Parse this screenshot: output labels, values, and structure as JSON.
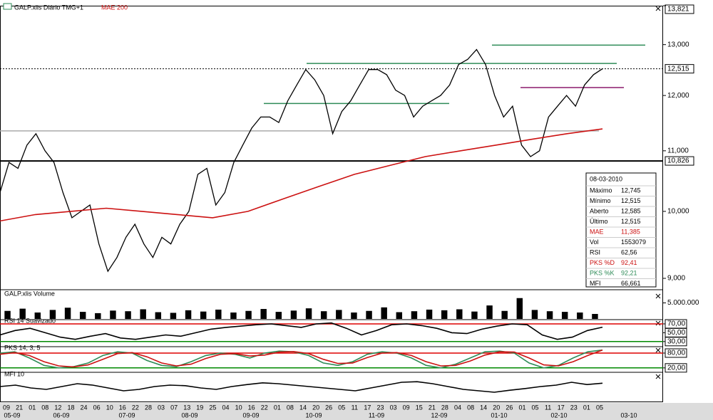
{
  "chart_data": [
    {
      "type": "line",
      "title": "GALP.xlis Diário TMG+1",
      "log_scale": true,
      "ylim": [
        8860,
        13821
      ],
      "yticks": [
        {
          "value": 9000,
          "label": "9,000"
        },
        {
          "value": 10000,
          "label": "10,000"
        },
        {
          "value": 11000,
          "label": "11,000"
        },
        {
          "value": 12000,
          "label": "12,000"
        },
        {
          "value": 13000,
          "label": "13,000"
        },
        {
          "value": 13821,
          "label": "13,821"
        }
      ],
      "marked_levels": [
        {
          "value": 12515,
          "label": "12,515"
        },
        {
          "value": 10826,
          "label": "10,826"
        }
      ],
      "trend_lines": [
        {
          "value": 12990,
          "color": "#2e8b57"
        },
        {
          "value": 12620,
          "color": "#2e8b57"
        },
        {
          "value": 11850,
          "color": "#2e8b57"
        },
        {
          "value": 12150,
          "color": "#8b1a6b"
        },
        {
          "value": 11350,
          "color": "#aaaaaa"
        }
      ],
      "series": [
        {
          "name": "GALP.xlis",
          "color": "#000000",
          "values": [
            10300,
            10800,
            10700,
            11100,
            11300,
            11000,
            10800,
            10300,
            9900,
            10000,
            10100,
            9500,
            9100,
            9300,
            9600,
            9800,
            9500,
            9300,
            9600,
            9500,
            9800,
            10000,
            10600,
            10700,
            10100,
            10300,
            10800,
            11100,
            11400,
            11600,
            11600,
            11500,
            11900,
            12200,
            12500,
            12300,
            12000,
            11300,
            11700,
            11900,
            12200,
            12500,
            12500,
            12400,
            12100,
            12000,
            11600,
            11800,
            11900,
            12000,
            12200,
            12600,
            12700,
            12900,
            12600,
            12000,
            11600,
            11800,
            11100,
            10900,
            11000,
            11600,
            11800,
            12000,
            11800,
            12200,
            12400,
            12515
          ]
        },
        {
          "name": "MAE 200",
          "color": "#cc1111",
          "values": [
            9850,
            9950,
            10000,
            10050,
            10000,
            9950,
            9900,
            10000,
            10200,
            10400,
            10600,
            10750,
            10900,
            11000,
            11100,
            11200,
            11300,
            11385
          ]
        }
      ]
    },
    {
      "type": "bar",
      "title": "GALP.xlis Volume",
      "color": "#000000",
      "ylim": [
        0,
        8000000
      ],
      "yticks": [
        {
          "value": 5000000,
          "label": "5.000.000"
        }
      ],
      "values": [
        2500000,
        3200000,
        2000000,
        2800000,
        3500000,
        2200000,
        1800000,
        2600000,
        2400000,
        3000000,
        2100000,
        1900000,
        2700000,
        2300000,
        2900000,
        2000000,
        2500000,
        3100000,
        2200000,
        2600000,
        3300000,
        2400000,
        2800000,
        2000000,
        2500000,
        3600000,
        2100000,
        2400000,
        2900000,
        2700000,
        3000000,
        2300000,
        4200000,
        2500000,
        6500000,
        2800000,
        2400000,
        2200000,
        2000000,
        1553079
      ]
    },
    {
      "type": "line",
      "title": "RSI 14 Suavizado",
      "ylim": [
        20,
        78
      ],
      "yticks": [
        {
          "value": 70,
          "label": "70,00"
        },
        {
          "value": 50,
          "label": "50,00"
        },
        {
          "value": 30,
          "label": "30,00"
        }
      ],
      "guide_lines": [
        {
          "value": 70,
          "color": "#dd0000"
        },
        {
          "value": 30,
          "color": "#008800"
        }
      ],
      "series": [
        {
          "name": "RSI",
          "color": "#000000",
          "values": [
            45,
            55,
            60,
            50,
            40,
            35,
            42,
            48,
            38,
            35,
            40,
            45,
            42,
            50,
            58,
            62,
            65,
            68,
            70,
            66,
            62,
            70,
            72,
            60,
            45,
            55,
            68,
            70,
            66,
            60,
            50,
            48,
            58,
            65,
            70,
            68,
            45,
            35,
            40,
            55,
            62.56
          ]
        }
      ]
    },
    {
      "type": "line",
      "title": "PKS 14, 3, 5",
      "ylim": [
        5,
        103
      ],
      "yticks": [
        {
          "value": 80,
          "label": "80,00"
        },
        {
          "value": 20,
          "label": "20,00"
        }
      ],
      "guide_lines": [
        {
          "value": 80,
          "color": "#dd0000"
        },
        {
          "value": 20,
          "color": "#008800"
        }
      ],
      "series": [
        {
          "name": "PKS %K",
          "color": "#2e8b57",
          "values": [
            80,
            85,
            60,
            30,
            20,
            25,
            40,
            70,
            85,
            80,
            50,
            30,
            25,
            45,
            70,
            80,
            75,
            60,
            80,
            88,
            85,
            70,
            40,
            30,
            45,
            75,
            85,
            80,
            60,
            30,
            20,
            35,
            60,
            85,
            88,
            80,
            40,
            20,
            30,
            60,
            85,
            92.21
          ]
        },
        {
          "name": "PKS %D",
          "color": "#cc1111",
          "values": [
            75,
            82,
            70,
            45,
            28,
            24,
            32,
            55,
            78,
            82,
            65,
            40,
            28,
            35,
            58,
            75,
            78,
            68,
            72,
            84,
            86,
            78,
            55,
            38,
            40,
            62,
            80,
            82,
            70,
            45,
            28,
            30,
            48,
            72,
            85,
            84,
            60,
            32,
            28,
            45,
            70,
            92.41
          ]
        }
      ]
    },
    {
      "type": "line",
      "title": "MFI 10",
      "ylim": [
        0,
        100
      ],
      "yticks": [],
      "series": [
        {
          "name": "MFI",
          "color": "#000000",
          "values": [
            55,
            60,
            50,
            45,
            55,
            65,
            60,
            50,
            40,
            45,
            55,
            60,
            58,
            50,
            45,
            55,
            62,
            68,
            65,
            60,
            55,
            50,
            45,
            40,
            50,
            60,
            70,
            72,
            65,
            55,
            45,
            40,
            35,
            42,
            48,
            55,
            60,
            70,
            62,
            66.661
          ]
        }
      ]
    }
  ],
  "x_axis": {
    "days": [
      "09",
      "21",
      "01",
      "08",
      "12",
      "18",
      "24",
      "06",
      "10",
      "16",
      "22",
      "28",
      "03",
      "07",
      "13",
      "19",
      "25",
      "04",
      "10",
      "16",
      "22",
      "01",
      "08",
      "14",
      "20",
      "26",
      "05",
      "11",
      "17",
      "23",
      "03",
      "09",
      "15",
      "21",
      "28",
      "04",
      "08",
      "14",
      "20",
      "26",
      "01",
      "05",
      "11",
      "17",
      "23",
      "01",
      "05"
    ],
    "months": [
      "05-09",
      "06-09",
      "07-09",
      "08-09",
      "09-09",
      "10-09",
      "11-09",
      "12-09",
      "01-10",
      "02-10",
      "03-10"
    ]
  },
  "info_box": {
    "date": "08-03-2010",
    "rows": [
      {
        "label": "Máximo",
        "value": "12,745",
        "color": "#000000"
      },
      {
        "label": "Mínimo",
        "value": "12,515",
        "color": "#000000"
      },
      {
        "label": "Aberto",
        "value": "12,585",
        "color": "#000000"
      },
      {
        "label": "Último",
        "value": "12,515",
        "color": "#000000"
      },
      {
        "label": "MAE",
        "value": "11,385",
        "color": "#cc1111"
      },
      {
        "label": "Vol",
        "value": "1553079",
        "color": "#000000"
      },
      {
        "label": "RSI",
        "value": "62,56",
        "color": "#000000"
      },
      {
        "label": "PKS %D",
        "value": "92,41",
        "color": "#cc1111"
      },
      {
        "label": "PKS %K",
        "value": "92,21",
        "color": "#2e8b57"
      },
      {
        "label": "MFI",
        "value": "66,661",
        "color": "#000000"
      }
    ]
  }
}
